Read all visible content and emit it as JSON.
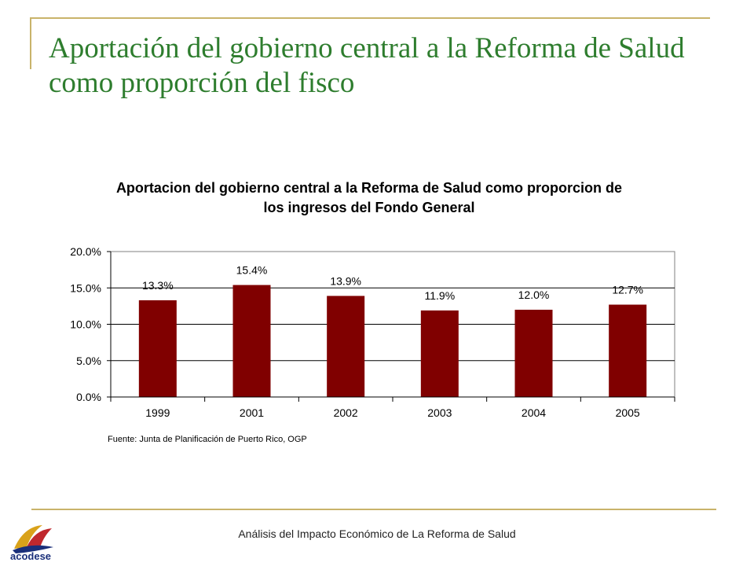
{
  "slide": {
    "title": "Aportación del gobierno central a la Reforma de Salud como proporción del fisco",
    "footer": "Análisis del Impacto Económico de La Reforma de Salud",
    "logo_text": "acodese"
  },
  "colors": {
    "title": "#2e7d2e",
    "bar": "#800000",
    "accent_line": "#c9b36a"
  },
  "chart_data": {
    "type": "bar",
    "title": "Aportacion del gobierno central a la Reforma de Salud como proporcion de los ingresos del Fondo General",
    "categories": [
      "1999",
      "2001",
      "2002",
      "2003",
      "2004",
      "2005"
    ],
    "values": [
      13.3,
      15.4,
      13.9,
      11.9,
      12.0,
      12.7
    ],
    "data_labels": [
      "13.3%",
      "15.4%",
      "13.9%",
      "11.9%",
      "12.0%",
      "12.7%"
    ],
    "y_ticks": [
      "0.0%",
      "5.0%",
      "10.0%",
      "15.0%",
      "20.0%"
    ],
    "ylim": [
      0,
      20
    ],
    "xlabel": "",
    "ylabel": "",
    "grid": true,
    "legend": "none",
    "source": "Fuente: Junta de Planificación de Puerto Rico, OGP"
  }
}
